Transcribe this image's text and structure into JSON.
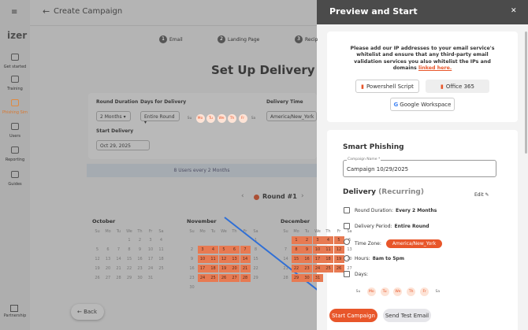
{
  "sidebar": {
    "logo": "izer",
    "items": [
      "Get started",
      "Training",
      "Phishing Sim",
      "Users",
      "Reporting",
      "Guides"
    ],
    "footer": "Partnership"
  },
  "header": {
    "title": "Create Campaign"
  },
  "steps": [
    {
      "number": 1,
      "label": "Email"
    },
    {
      "number": 2,
      "label": "Landing Page"
    },
    {
      "number": 3,
      "label": "Recip"
    }
  ],
  "weekdays": [
    "Su",
    "Mo",
    "Tu",
    "We",
    "Th",
    "Fr",
    "Sa"
  ],
  "selected_days": [
    false,
    true,
    true,
    true,
    true,
    true,
    false
  ],
  "delivery": {
    "title": "Set Up Delivery",
    "round_duration": {
      "label": "Round Duration",
      "value": "2 Months"
    },
    "days_for_delivery": {
      "label": "Days for Delivery",
      "value": "Entire Round"
    },
    "delivery_time": {
      "label": "Delivery Time",
      "value": "America/New_York"
    },
    "start_delivery": {
      "label": "Start Delivery",
      "value": "Oct 29, 2025"
    },
    "summary": "8 Users every 2 Months",
    "round": "Round #1"
  },
  "calendar": {
    "months": [
      {
        "name": "October",
        "weeks": [
          [
            null,
            null,
            null,
            1,
            2,
            3,
            4
          ],
          [
            5,
            6,
            7,
            8,
            9,
            10,
            11
          ],
          [
            12,
            13,
            14,
            15,
            16,
            17,
            18
          ],
          [
            19,
            20,
            21,
            22,
            23,
            24,
            25
          ],
          [
            26,
            27,
            28,
            29,
            30,
            31,
            null
          ]
        ]
      },
      {
        "name": "November",
        "weeks": [
          [
            null,
            null,
            null,
            null,
            null,
            null,
            1
          ],
          [
            2,
            3,
            4,
            5,
            6,
            7,
            8
          ],
          [
            9,
            10,
            11,
            12,
            13,
            14,
            15
          ],
          [
            16,
            17,
            18,
            19,
            20,
            21,
            22
          ],
          [
            23,
            24,
            25,
            26,
            27,
            28,
            29
          ],
          [
            30,
            null,
            null,
            null,
            null,
            null,
            null
          ]
        ]
      },
      {
        "name": "December",
        "weeks": [
          [
            null,
            1,
            2,
            3,
            4,
            5,
            6
          ],
          [
            7,
            8,
            9,
            10,
            11,
            12,
            13
          ],
          [
            14,
            15,
            16,
            17,
            18,
            19,
            20
          ],
          [
            21,
            22,
            23,
            24,
            25,
            26,
            27
          ],
          [
            28,
            29,
            30,
            31,
            null,
            null,
            null
          ]
        ]
      }
    ]
  },
  "back": "Back",
  "panel": {
    "title": "Preview and Start",
    "close": "✕",
    "notice": {
      "text": "Please add our IP addresses to your email service's whitelist and ensure that any third-party email validation services you also whitelist the IPs and domains",
      "link": "linked here."
    },
    "buttons": [
      "Powershell Script",
      "Office 365",
      "Google Workspace"
    ],
    "section": "Smart Phishing",
    "campaign_name": {
      "label": "Campaign Name *",
      "value": "Campaign 10/29/2025"
    },
    "delivery": {
      "title": "Delivery",
      "tag": "(Recurring)",
      "edit": "Edit"
    },
    "rows": [
      {
        "label": "Round Duration:",
        "value": "Every 2 Months"
      },
      {
        "label": "Delivery Period:",
        "value": "Entire Round"
      },
      {
        "label": "Time Zone:",
        "value": "America/New_York"
      },
      {
        "label": "Hours:",
        "value": "8am to 5pm"
      },
      {
        "label": "Days:",
        "value": null
      }
    ],
    "start": "Start Campaign",
    "test": "Send Test Email"
  }
}
